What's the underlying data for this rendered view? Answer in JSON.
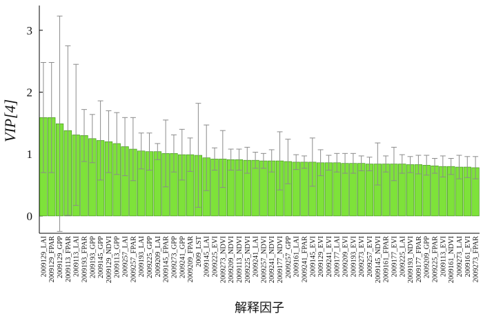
{
  "chart_data": {
    "type": "bar",
    "y_label": "VIP[4]",
    "x_label": "解释因子",
    "color": "#7ee23a",
    "error_color": "#8a8a8a",
    "categories": [
      "2009129_LAI",
      "2009129_FPAR",
      "2009129_GPP",
      "2009113_FPAR",
      "2009113_LAI",
      "2009193_FPAR",
      "2009193_GPP",
      "2009145_GPP",
      "2009129_NDVI",
      "2009113_GPP",
      "2009257_LAI",
      "2009257_FPAR",
      "2009193_LAI",
      "2009225_GPP",
      "2009209_LAI",
      "2009145_FPAR",
      "2009273_GPP",
      "2009241_GPP",
      "2009209_FPAR",
      "2009_LST",
      "2009145_LAI",
      "2009225_EVI",
      "2009273_NDVI",
      "2009209_NDVI",
      "2009113_NDVI",
      "2009225_NDVI",
      "2009241_LAI",
      "2009257_NDVI",
      "2009241_NDVI",
      "2009177_NDVI",
      "2009257_GPP",
      "2009161_LAI",
      "2009241_FPAR",
      "2009145_EVI",
      "2009129_EVI",
      "2009241_EVI",
      "2009177_LAI",
      "2009209_EVI",
      "2009193_EVI",
      "2009273_EVI",
      "2009257_EVI",
      "2009145_NDVI",
      "2009161_FPAR",
      "2009177_EVI",
      "2009225_LAI",
      "2009193_NDVI",
      "2009177_FPAR",
      "2009209_GPP",
      "2009225_FPAR",
      "2009113_EVI",
      "2009161_NDVI",
      "2009273_LAI",
      "2009161_EVI",
      "2009273_FPAR"
    ],
    "values": [
      1.59,
      1.59,
      1.49,
      1.38,
      1.31,
      1.3,
      1.25,
      1.22,
      1.2,
      1.17,
      1.12,
      1.08,
      1.05,
      1.04,
      1.04,
      1.01,
      1.01,
      0.99,
      0.99,
      0.98,
      0.94,
      0.92,
      0.92,
      0.91,
      0.91,
      0.9,
      0.9,
      0.89,
      0.89,
      0.89,
      0.88,
      0.87,
      0.87,
      0.87,
      0.86,
      0.86,
      0.86,
      0.85,
      0.85,
      0.85,
      0.84,
      0.84,
      0.84,
      0.84,
      0.84,
      0.83,
      0.83,
      0.82,
      0.81,
      0.8,
      0.8,
      0.79,
      0.79,
      0.78
    ],
    "errors": [
      0.89,
      0.89,
      1.74,
      1.37,
      1.14,
      0.42,
      0.39,
      0.64,
      0.5,
      0.5,
      0.47,
      0.51,
      0.29,
      0.3,
      0.13,
      0.54,
      0.3,
      0.41,
      0.27,
      0.84,
      0.53,
      0.18,
      0.46,
      0.17,
      0.17,
      0.21,
      0.13,
      0.12,
      0.18,
      0.47,
      0.36,
      0.12,
      0.1,
      0.39,
      0.21,
      0.12,
      0.15,
      0.16,
      0.16,
      0.12,
      0.11,
      0.34,
      0.13,
      0.27,
      0.15,
      0.13,
      0.15,
      0.16,
      0.12,
      0.17,
      0.13,
      0.19,
      0.17,
      0.18
    ],
    "ylim": [
      -0.28,
      3.4
    ],
    "yticks": [
      0,
      1,
      2,
      3
    ]
  }
}
